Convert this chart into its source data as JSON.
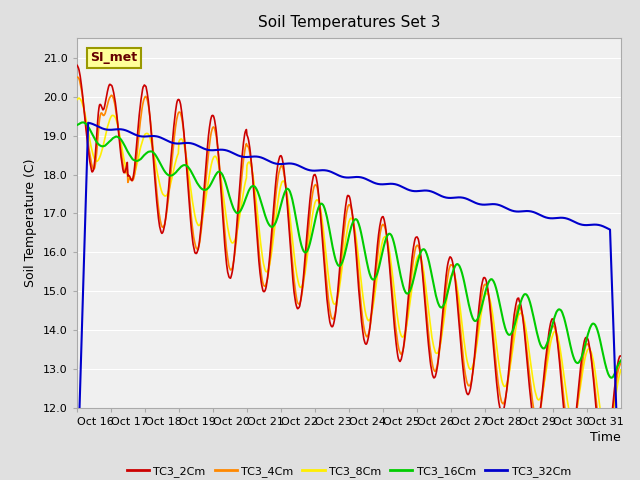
{
  "title": "Soil Temperatures Set 3",
  "xlabel": "Time",
  "ylabel": "Soil Temperature (C)",
  "ylim": [
    12.0,
    21.5
  ],
  "yticks": [
    12.0,
    13.0,
    14.0,
    15.0,
    16.0,
    17.0,
    18.0,
    19.0,
    20.0,
    21.0
  ],
  "xtick_labels": [
    "Oct 16",
    "Oct 17",
    "Oct 18",
    "Oct 19",
    "Oct 20",
    "Oct 21",
    "Oct 22",
    "Oct 23",
    "Oct 24",
    "Oct 25",
    "Oct 26",
    "Oct 27",
    "Oct 28",
    "Oct 29",
    "Oct 30",
    "Oct 31"
  ],
  "series_colors": [
    "#cc0000",
    "#ff8800",
    "#ffee00",
    "#00cc00",
    "#0000cc"
  ],
  "series_labels": [
    "TC3_2Cm",
    "TC3_4Cm",
    "TC3_8Cm",
    "TC3_16Cm",
    "TC3_32Cm"
  ],
  "fig_bg": "#e0e0e0",
  "plot_bg": "#f0f0f0",
  "annotation_text": "SI_met",
  "annotation_fg": "#660000",
  "annotation_bg": "#ffff99",
  "annotation_border": "#999900",
  "n_points": 960,
  "n_days": 16,
  "grid_color": "#ffffff",
  "spine_color": "#aaaaaa"
}
